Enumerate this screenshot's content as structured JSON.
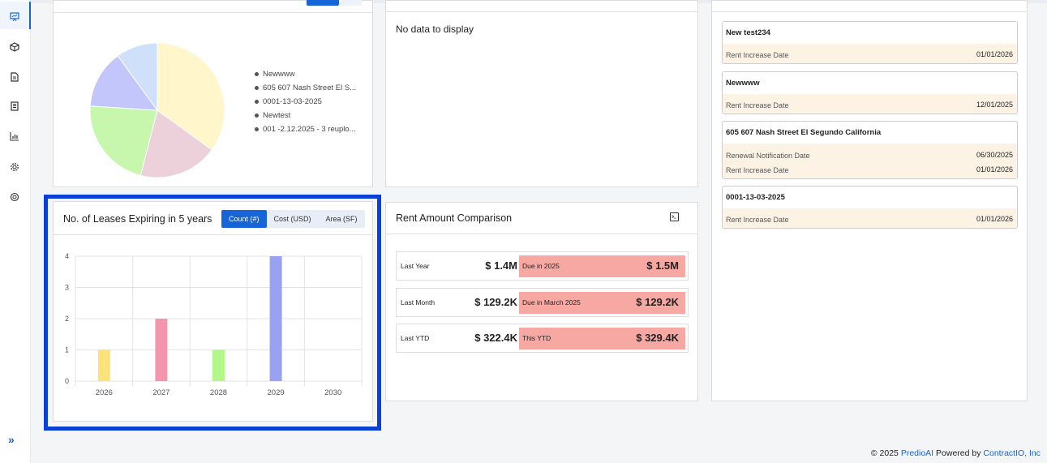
{
  "sidebar": {
    "icons": [
      "presentation-icon",
      "cube-icon",
      "document-icon",
      "building-icon",
      "bar-chart-icon",
      "gear-icon",
      "support-icon"
    ],
    "expand_label": "»"
  },
  "pie_panel": {
    "legend": [
      "Newwww",
      "605 607 Nash Street  El S...",
      "0001-13-03-2025",
      "Newtest",
      "001 -2.12.2025 - 3 reuplo..."
    ],
    "slice_colors": [
      "#fff6cc",
      "#ecd0da",
      "#c6f7ad",
      "#c2c6fb",
      "#cfe0fb"
    ],
    "slice_values": [
      35,
      19,
      22,
      14,
      10
    ]
  },
  "nodata_panel": {
    "text": "No data to display"
  },
  "leases_panel": {
    "title": "No. of Leases Expiring in 5 years",
    "tabs": [
      "Count (#)",
      "Cost (USD)",
      "Area (SF)"
    ],
    "active_tab": 0
  },
  "chart_data": {
    "type": "bar",
    "categories": [
      "2026",
      "2027",
      "2028",
      "2029",
      "2030"
    ],
    "values": [
      1,
      2,
      1,
      4,
      0
    ],
    "colors": [
      "#fde27a",
      "#f594ad",
      "#b3f78a",
      "#98a2f0",
      "#cccccc"
    ],
    "yticks": [
      "0",
      "1",
      "2",
      "3",
      "4"
    ],
    "ylim": [
      0,
      4
    ],
    "title": "",
    "xlabel": "",
    "ylabel": "",
    "grid": true
  },
  "rent_panel": {
    "title": "Rent Amount Comparison",
    "rows": [
      {
        "label": "Last Year",
        "value": "$ 1.4M",
        "compare_label": "Due in 2025",
        "compare_value": "$ 1.5M"
      },
      {
        "label": "Last Month",
        "value": "$ 129.2K",
        "compare_label": "Due in March 2025",
        "compare_value": "$ 129.2K"
      },
      {
        "label": "Last YTD",
        "value": "$ 322.4K",
        "compare_label": "This YTD",
        "compare_value": "$ 329.4K"
      }
    ]
  },
  "right_panel": {
    "cards": [
      {
        "title": "New test234",
        "lines": [
          {
            "label": "Rent Increase Date",
            "value": "01/01/2026"
          }
        ]
      },
      {
        "title": "Newwww",
        "lines": [
          {
            "label": "Rent Increase Date",
            "value": "12/01/2025"
          }
        ]
      },
      {
        "title": "605 607 Nash Street El Segundo California",
        "lines": [
          {
            "label": "Renewal Notification Date",
            "value": "06/30/2025"
          },
          {
            "label": "Rent Increase Date",
            "value": "01/01/2026"
          }
        ]
      },
      {
        "title": "0001-13-03-2025",
        "lines": [
          {
            "label": "Rent Increase Date",
            "value": "01/01/2026"
          }
        ]
      }
    ]
  },
  "footer": {
    "copyright": "© 2025",
    "brand": "PredioAI",
    "powered": "Powered by",
    "company": "ContractIO, Inc"
  }
}
